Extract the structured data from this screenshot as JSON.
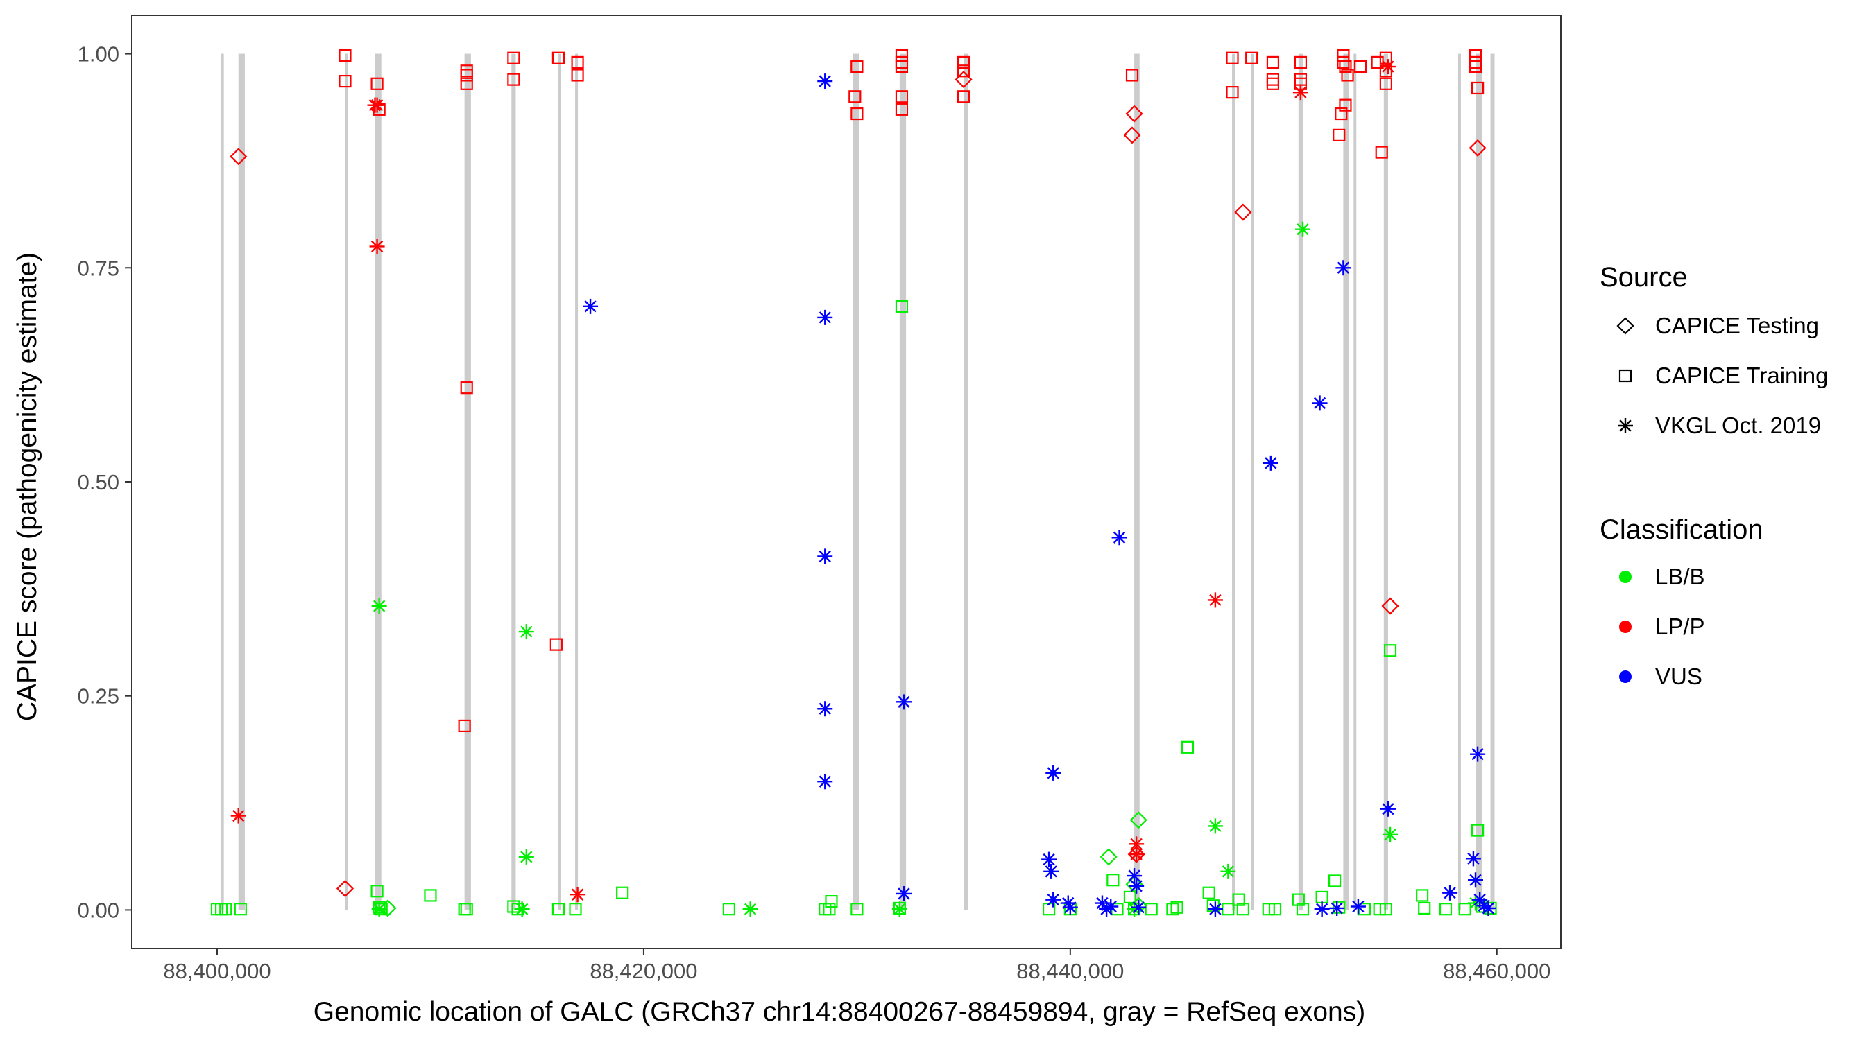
{
  "chart_data": {
    "type": "scatter",
    "title": "",
    "xlabel": "Genomic location of GALC (GRCh37 chr14:88400267-88459894, gray = RefSeq exons)",
    "ylabel": "CAPICE score (pathogenicity estimate)",
    "xlim": [
      88396000,
      88463000
    ],
    "ylim": [
      -0.045,
      1.045
    ],
    "x_ticks": [
      88400000,
      88420000,
      88440000,
      88460000
    ],
    "x_tick_labels": [
      "88,400,000",
      "88,420,000",
      "88,440,000",
      "88,460,000"
    ],
    "y_ticks": [
      0,
      0.25,
      0.5,
      0.75,
      1
    ],
    "y_tick_labels": [
      "0.00",
      "0.25",
      "0.50",
      "0.75",
      "1.00"
    ],
    "grid": false,
    "exons": [
      [
        88400200,
        88400300
      ],
      [
        88401000,
        88401300
      ],
      [
        88406000,
        88406100
      ],
      [
        88407400,
        88407700
      ],
      [
        88411600,
        88411900
      ],
      [
        88413800,
        88414000
      ],
      [
        88416000,
        88416100
      ],
      [
        88416800,
        88416900
      ],
      [
        88429800,
        88430100
      ],
      [
        88432000,
        88432300
      ],
      [
        88435000,
        88435200
      ],
      [
        88443000,
        88443250
      ],
      [
        88447600,
        88447700
      ],
      [
        88448500,
        88448600
      ],
      [
        88450700,
        88450900
      ],
      [
        88452800,
        88453050
      ],
      [
        88453300,
        88453400
      ],
      [
        88454700,
        88454900
      ],
      [
        88458200,
        88458300
      ],
      [
        88459000,
        88459300
      ],
      [
        88459700,
        88459894
      ]
    ],
    "legend": {
      "position": "right",
      "source_title": "Source",
      "source_items": [
        {
          "label": "CAPICE Testing",
          "shape": "diamond"
        },
        {
          "label": "CAPICE Training",
          "shape": "square"
        },
        {
          "label": "VKGL Oct. 2019",
          "shape": "asterisk"
        }
      ],
      "class_title": "Classification",
      "class_items": [
        {
          "label": "LB/B",
          "color": "#00ee00"
        },
        {
          "label": "LP/P",
          "color": "#ff0000"
        },
        {
          "label": "VUS",
          "color": "#0000ff"
        }
      ]
    },
    "series": [
      {
        "name": "CAPICE Testing",
        "shape": "diamond",
        "points": [
          [
            88401000,
            0.88,
            "LP/P"
          ],
          [
            88406000,
            0.025,
            "LP/P"
          ],
          [
            88443000,
            0.93,
            "LP/P"
          ],
          [
            88442900,
            0.905,
            "LP/P"
          ],
          [
            88448100,
            0.815,
            "LP/P"
          ],
          [
            88455000,
            0.355,
            "LP/P"
          ],
          [
            88459100,
            0.89,
            "LP/P"
          ],
          [
            88435000,
            0.97,
            "LP/P"
          ],
          [
            88443100,
            0.065,
            "LP/P"
          ],
          [
            88443200,
            0.105,
            "LB/B"
          ],
          [
            88441800,
            0.062,
            "LB/B"
          ],
          [
            88443000,
            0.03,
            "LB/B"
          ],
          [
            88443200,
            0.005,
            "LB/B"
          ],
          [
            88408000,
            0.002,
            "LB/B"
          ]
        ]
      },
      {
        "name": "CAPICE Training",
        "shape": "square",
        "points": [
          [
            88406000,
            0.998,
            "LP/P"
          ],
          [
            88406000,
            0.968,
            "LP/P"
          ],
          [
            88407500,
            0.965,
            "LP/P"
          ],
          [
            88407600,
            0.935,
            "LP/P"
          ],
          [
            88411700,
            0.98,
            "LP/P"
          ],
          [
            88411700,
            0.975,
            "LP/P"
          ],
          [
            88411700,
            0.965,
            "LP/P"
          ],
          [
            88411700,
            0.61,
            "LP/P"
          ],
          [
            88411600,
            0.215,
            "LP/P"
          ],
          [
            88413900,
            0.995,
            "LP/P"
          ],
          [
            88413900,
            0.97,
            "LP/P"
          ],
          [
            88416000,
            0.995,
            "LP/P"
          ],
          [
            88416900,
            0.99,
            "LP/P"
          ],
          [
            88416900,
            0.975,
            "LP/P"
          ],
          [
            88415900,
            0.31,
            "LP/P"
          ],
          [
            88430000,
            0.985,
            "LP/P"
          ],
          [
            88430000,
            0.985,
            "LP/P"
          ],
          [
            88429900,
            0.95,
            "LP/P"
          ],
          [
            88430000,
            0.93,
            "LP/P"
          ],
          [
            88432100,
            0.998,
            "LP/P"
          ],
          [
            88432100,
            0.99,
            "LP/P"
          ],
          [
            88432100,
            0.985,
            "LP/P"
          ],
          [
            88432100,
            0.95,
            "LP/P"
          ],
          [
            88432100,
            0.935,
            "LP/P"
          ],
          [
            88435000,
            0.99,
            "LP/P"
          ],
          [
            88435000,
            0.98,
            "LP/P"
          ],
          [
            88435000,
            0.95,
            "LP/P"
          ],
          [
            88442900,
            0.975,
            "LP/P"
          ],
          [
            88447600,
            0.995,
            "LP/P"
          ],
          [
            88447600,
            0.955,
            "LP/P"
          ],
          [
            88448500,
            0.995,
            "LP/P"
          ],
          [
            88449500,
            0.99,
            "LP/P"
          ],
          [
            88449500,
            0.97,
            "LP/P"
          ],
          [
            88449500,
            0.965,
            "LP/P"
          ],
          [
            88450800,
            0.99,
            "LP/P"
          ],
          [
            88450800,
            0.97,
            "LP/P"
          ],
          [
            88450800,
            0.965,
            "LP/P"
          ],
          [
            88452800,
            0.998,
            "LP/P"
          ],
          [
            88452800,
            0.99,
            "LP/P"
          ],
          [
            88452900,
            0.985,
            "LP/P"
          ],
          [
            88453000,
            0.975,
            "LP/P"
          ],
          [
            88452700,
            0.93,
            "LP/P"
          ],
          [
            88452900,
            0.94,
            "LP/P"
          ],
          [
            88452600,
            0.905,
            "LP/P"
          ],
          [
            88453600,
            0.985,
            "LP/P"
          ],
          [
            88454400,
            0.99,
            "LP/P"
          ],
          [
            88454800,
            0.995,
            "LP/P"
          ],
          [
            88454800,
            0.98,
            "LP/P"
          ],
          [
            88454800,
            0.965,
            "LP/P"
          ],
          [
            88454600,
            0.885,
            "LP/P"
          ],
          [
            88459000,
            0.998,
            "LP/P"
          ],
          [
            88459000,
            0.99,
            "LP/P"
          ],
          [
            88459000,
            0.985,
            "LP/P"
          ],
          [
            88459100,
            0.96,
            "LP/P"
          ],
          [
            88400000,
            0.001,
            "LB/B"
          ],
          [
            88400200,
            0.001,
            "LB/B"
          ],
          [
            88400400,
            0.001,
            "LB/B"
          ],
          [
            88401100,
            0.001,
            "LB/B"
          ],
          [
            88407500,
            0.022,
            "LB/B"
          ],
          [
            88407600,
            0.003,
            "LB/B"
          ],
          [
            88407700,
            0.001,
            "LB/B"
          ],
          [
            88410000,
            0.017,
            "LB/B"
          ],
          [
            88411600,
            0.001,
            "LB/B"
          ],
          [
            88411700,
            0.001,
            "LB/B"
          ],
          [
            88413900,
            0.004,
            "LB/B"
          ],
          [
            88414100,
            0.001,
            "LB/B"
          ],
          [
            88416000,
            0.001,
            "LB/B"
          ],
          [
            88416800,
            0.001,
            "LB/B"
          ],
          [
            88419000,
            0.02,
            "LB/B"
          ],
          [
            88424000,
            0.001,
            "LB/B"
          ],
          [
            88428500,
            0.001,
            "LB/B"
          ],
          [
            88428700,
            0.001,
            "LB/B"
          ],
          [
            88428800,
            0.01,
            "LB/B"
          ],
          [
            88430000,
            0.001,
            "LB/B"
          ],
          [
            88432100,
            0.705,
            "LB/B"
          ],
          [
            88432000,
            0.002,
            "LB/B"
          ],
          [
            88439000,
            0.001,
            "LB/B"
          ],
          [
            88440000,
            0.001,
            "LB/B"
          ],
          [
            88442000,
            0.035,
            "LB/B"
          ],
          [
            88442200,
            0.001,
            "LB/B"
          ],
          [
            88442800,
            0.015,
            "LB/B"
          ],
          [
            88443000,
            0.001,
            "LB/B"
          ],
          [
            88443800,
            0.001,
            "LB/B"
          ],
          [
            88444800,
            0.001,
            "LB/B"
          ],
          [
            88445000,
            0.003,
            "LB/B"
          ],
          [
            88445500,
            0.19,
            "LB/B"
          ],
          [
            88446500,
            0.02,
            "LB/B"
          ],
          [
            88446700,
            0.005,
            "LB/B"
          ],
          [
            88447400,
            0.001,
            "LB/B"
          ],
          [
            88447900,
            0.012,
            "LB/B"
          ],
          [
            88448100,
            0.001,
            "LB/B"
          ],
          [
            88449300,
            0.001,
            "LB/B"
          ],
          [
            88449600,
            0.001,
            "LB/B"
          ],
          [
            88450700,
            0.012,
            "LB/B"
          ],
          [
            88450900,
            0.001,
            "LB/B"
          ],
          [
            88451800,
            0.015,
            "LB/B"
          ],
          [
            88452400,
            0.034,
            "LB/B"
          ],
          [
            88452600,
            0.003,
            "LB/B"
          ],
          [
            88453800,
            0.001,
            "LB/B"
          ],
          [
            88454500,
            0.001,
            "LB/B"
          ],
          [
            88454800,
            0.001,
            "LB/B"
          ],
          [
            88455000,
            0.303,
            "LB/B"
          ],
          [
            88456500,
            0.017,
            "LB/B"
          ],
          [
            88456600,
            0.002,
            "LB/B"
          ],
          [
            88457600,
            0.001,
            "LB/B"
          ],
          [
            88458500,
            0.001,
            "LB/B"
          ],
          [
            88459100,
            0.093,
            "LB/B"
          ],
          [
            88459300,
            0.004,
            "LB/B"
          ],
          [
            88459700,
            0.002,
            "LB/B"
          ]
        ]
      },
      {
        "name": "VKGL Oct. 2019",
        "shape": "asterisk",
        "points": [
          [
            88401000,
            0.11,
            "LP/P"
          ],
          [
            88407400,
            0.94,
            "LP/P"
          ],
          [
            88407500,
            0.94,
            "LP/P"
          ],
          [
            88407500,
            0.775,
            "LP/P"
          ],
          [
            88416900,
            0.018,
            "LP/P"
          ],
          [
            88443100,
            0.077,
            "LP/P"
          ],
          [
            88443100,
            0.065,
            "LP/P"
          ],
          [
            88446800,
            0.362,
            "LP/P"
          ],
          [
            88450800,
            0.955,
            "LP/P"
          ],
          [
            88454900,
            0.985,
            "LP/P"
          ],
          [
            88407600,
            0.355,
            "LB/B"
          ],
          [
            88407600,
            0.001,
            "LB/B"
          ],
          [
            88414500,
            0.325,
            "LB/B"
          ],
          [
            88414500,
            0.062,
            "LB/B"
          ],
          [
            88414300,
            0.001,
            "LB/B"
          ],
          [
            88425000,
            0.001,
            "LB/B"
          ],
          [
            88432000,
            0.001,
            "LB/B"
          ],
          [
            88443000,
            0.001,
            "LB/B"
          ],
          [
            88446800,
            0.098,
            "LB/B"
          ],
          [
            88447400,
            0.045,
            "LB/B"
          ],
          [
            88450900,
            0.795,
            "LB/B"
          ],
          [
            88455000,
            0.088,
            "LB/B"
          ],
          [
            88459000,
            0.008,
            "LB/B"
          ],
          [
            88417500,
            0.705,
            "VUS"
          ],
          [
            88428500,
            0.968,
            "VUS"
          ],
          [
            88428500,
            0.692,
            "VUS"
          ],
          [
            88428500,
            0.413,
            "VUS"
          ],
          [
            88428500,
            0.235,
            "VUS"
          ],
          [
            88428500,
            0.15,
            "VUS"
          ],
          [
            88432200,
            0.243,
            "VUS"
          ],
          [
            88432200,
            0.019,
            "VUS"
          ],
          [
            88439200,
            0.16,
            "VUS"
          ],
          [
            88439000,
            0.059,
            "VUS"
          ],
          [
            88439100,
            0.045,
            "VUS"
          ],
          [
            88439200,
            0.012,
            "VUS"
          ],
          [
            88439900,
            0.008,
            "VUS"
          ],
          [
            88440000,
            0.003,
            "VUS"
          ],
          [
            88441500,
            0.008,
            "VUS"
          ],
          [
            88441700,
            0.001,
            "VUS"
          ],
          [
            88441900,
            0.004,
            "VUS"
          ],
          [
            88442300,
            0.435,
            "VUS"
          ],
          [
            88443000,
            0.04,
            "VUS"
          ],
          [
            88443100,
            0.028,
            "VUS"
          ],
          [
            88443200,
            0.003,
            "VUS"
          ],
          [
            88446800,
            0.001,
            "VUS"
          ],
          [
            88449400,
            0.522,
            "VUS"
          ],
          [
            88451700,
            0.592,
            "VUS"
          ],
          [
            88452800,
            0.75,
            "VUS"
          ],
          [
            88451800,
            0.001,
            "VUS"
          ],
          [
            88452500,
            0.002,
            "VUS"
          ],
          [
            88453500,
            0.004,
            "VUS"
          ],
          [
            88454900,
            0.118,
            "VUS"
          ],
          [
            88457800,
            0.02,
            "VUS"
          ],
          [
            88458900,
            0.06,
            "VUS"
          ],
          [
            88459000,
            0.035,
            "VUS"
          ],
          [
            88459100,
            0.182,
            "VUS"
          ],
          [
            88459200,
            0.012,
            "VUS"
          ],
          [
            88459400,
            0.005,
            "VUS"
          ],
          [
            88459600,
            0.002,
            "VUS"
          ]
        ]
      }
    ]
  }
}
